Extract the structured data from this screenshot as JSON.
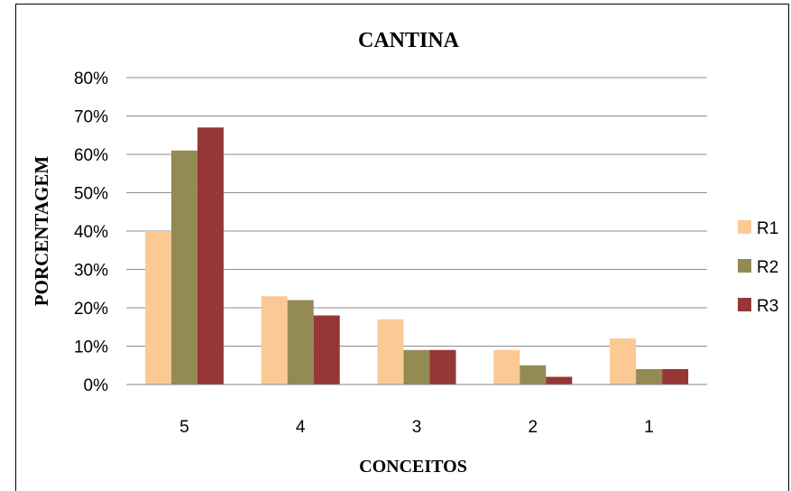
{
  "chart_data": {
    "type": "bar",
    "title": "CANTINA",
    "xlabel": "CONCEITOS",
    "ylabel": "PORCENTAGEM",
    "categories": [
      "5",
      "4",
      "3",
      "2",
      "1"
    ],
    "series": [
      {
        "name": "R1",
        "values": [
          40,
          23,
          17,
          9,
          12
        ],
        "color": "#fcc995"
      },
      {
        "name": "R2",
        "values": [
          61,
          22,
          9,
          5,
          4
        ],
        "color": "#948a54"
      },
      {
        "name": "R3",
        "values": [
          67,
          18,
          9,
          2,
          4
        ],
        "color": "#953735"
      }
    ],
    "ylim": [
      0,
      80
    ],
    "yticks": [
      "0%",
      "10%",
      "20%",
      "30%",
      "40%",
      "50%",
      "60%",
      "70%",
      "80%"
    ],
    "grid": true,
    "legend": "right"
  }
}
